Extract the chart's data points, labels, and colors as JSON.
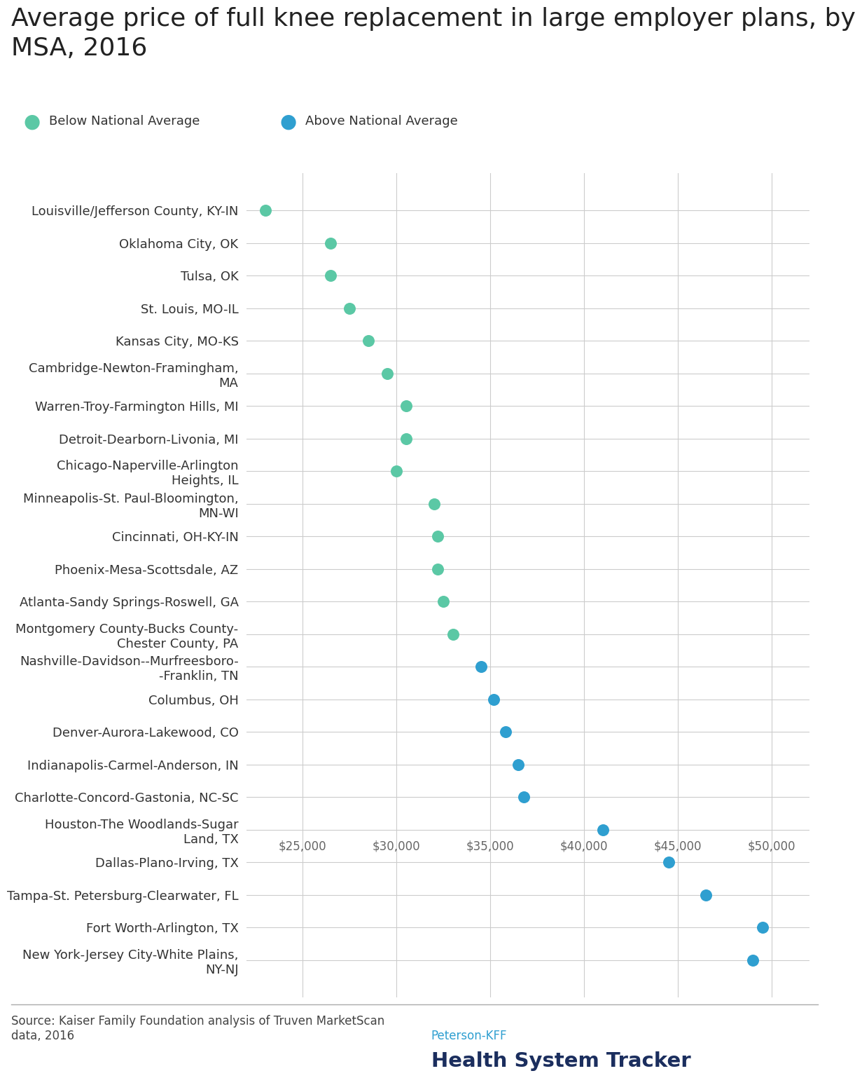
{
  "title": "Average price of full knee replacement in large employer plans, by\nMSA, 2016",
  "categories": [
    "Louisville/Jefferson County, KY-IN",
    "Oklahoma City, OK",
    "Tulsa, OK",
    "St. Louis, MO-IL",
    "Kansas City, MO-KS",
    "Cambridge-Newton-Framingham,\nMA",
    "Warren-Troy-Farmington Hills, MI",
    "Detroit-Dearborn-Livonia, MI",
    "Chicago-Naperville-Arlington\nHeights, IL",
    "Minneapolis-St. Paul-Bloomington,\nMN-WI",
    "Cincinnati, OH-KY-IN",
    "Phoenix-Mesa-Scottsdale, AZ",
    "Atlanta-Sandy Springs-Roswell, GA",
    "Montgomery County-Bucks County-\nChester County, PA",
    "Nashville-Davidson--Murfreesboro-\n-Franklin, TN",
    "Columbus, OH",
    "Denver-Aurora-Lakewood, CO",
    "Indianapolis-Carmel-Anderson, IN",
    "Charlotte-Concord-Gastonia, NC-SC",
    "Houston-The Woodlands-Sugar\nLand, TX",
    "Dallas-Plano-Irving, TX",
    "Tampa-St. Petersburg-Clearwater, FL",
    "Fort Worth-Arlington, TX",
    "New York-Jersey City-White Plains,\nNY-NJ"
  ],
  "values": [
    23000,
    26500,
    26500,
    27500,
    28500,
    29500,
    30500,
    30500,
    30000,
    32000,
    32200,
    32200,
    32500,
    33000,
    34500,
    35200,
    35800,
    36500,
    36800,
    41000,
    44500,
    46500,
    49500,
    49000
  ],
  "above_average": [
    false,
    false,
    false,
    false,
    false,
    false,
    false,
    false,
    false,
    false,
    false,
    false,
    false,
    false,
    true,
    true,
    true,
    true,
    true,
    true,
    true,
    true,
    true,
    true
  ],
  "color_below": "#5bc8a5",
  "color_above": "#2f9fd0",
  "xlim": [
    22000,
    52000
  ],
  "xticks": [
    25000,
    30000,
    35000,
    40000,
    45000,
    50000
  ],
  "source_text": "Source: Kaiser Family Foundation analysis of Truven MarketScan\ndata, 2016",
  "legend_below": "Below National Average",
  "legend_above": "Above National Average",
  "title_fontsize": 26,
  "label_fontsize": 13,
  "tick_fontsize": 12,
  "source_fontsize": 12,
  "dot_size": 150,
  "background_color": "#ffffff",
  "grid_color": "#cccccc",
  "peterson_kff_color": "#2f9fd0",
  "hst_color": "#1b2e5e",
  "xtick_label_row": 19.5
}
